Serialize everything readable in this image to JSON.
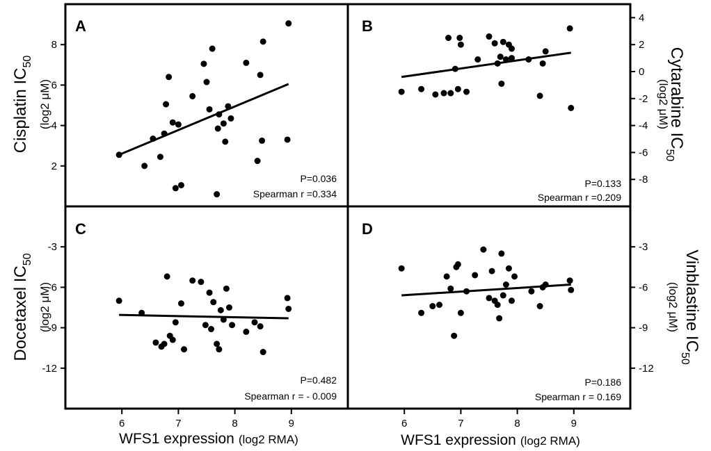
{
  "figure": {
    "x_axis_title": "WFS1 expression",
    "x_axis_unit": "(log2 RMA)",
    "x_ticks": [
      "6",
      "7",
      "8",
      "9"
    ]
  },
  "chart_data": [
    {
      "type": "scatter",
      "letter": "A",
      "title_main": "Cisplatin IC",
      "title_sub": "50",
      "unit": "(log2 μM)",
      "p_text": "P=0.036",
      "r_text": "Spearman r =0.334",
      "xlim": [
        5.0,
        10.0
      ],
      "ylim": [
        0,
        10
      ],
      "y_ticks": [
        "2",
        "4",
        "6",
        "8"
      ],
      "y_axis_side": "left",
      "trend": [
        [
          5.95,
          2.55
        ],
        [
          8.95,
          6.05
        ]
      ],
      "x": [
        5.95,
        6.4,
        6.55,
        6.68,
        6.75,
        6.78,
        6.83,
        6.9,
        6.95,
        7.0,
        7.05,
        7.25,
        7.45,
        7.5,
        7.55,
        7.6,
        7.7,
        7.72,
        7.8,
        7.83,
        7.88,
        7.93,
        8.2,
        8.4,
        8.45,
        8.48,
        8.5,
        8.93,
        8.95,
        7.68
      ],
      "y": [
        2.55,
        2.0,
        3.35,
        2.45,
        3.6,
        5.05,
        6.4,
        4.15,
        0.9,
        4.05,
        1.05,
        5.45,
        7.05,
        6.15,
        4.8,
        7.8,
        3.85,
        4.55,
        4.1,
        3.2,
        4.95,
        4.35,
        7.1,
        2.25,
        6.5,
        3.25,
        8.15,
        3.3,
        9.05,
        0.6
      ]
    },
    {
      "type": "scatter",
      "letter": "B",
      "title_main": "Cytarabine IC",
      "title_sub": "50",
      "unit": "(log2 μM)",
      "p_text": "P=0.133",
      "r_text": "Spearman r =0.209",
      "xlim": [
        5.0,
        10.0
      ],
      "ylim": [
        -10,
        5
      ],
      "y_ticks": [
        "-8",
        "-6",
        "-4",
        "-2",
        "0",
        "2",
        "4"
      ],
      "y_axis_side": "right",
      "trend": [
        [
          5.95,
          -0.4
        ],
        [
          8.95,
          1.4
        ]
      ],
      "x": [
        5.95,
        6.3,
        6.55,
        6.7,
        6.78,
        6.82,
        6.9,
        6.95,
        6.98,
        7.0,
        7.1,
        7.3,
        7.5,
        7.6,
        7.65,
        7.7,
        7.72,
        7.75,
        7.8,
        7.85,
        7.9,
        7.9,
        8.2,
        8.4,
        8.45,
        8.5,
        8.93,
        8.95
      ],
      "y": [
        -1.5,
        -1.3,
        -1.7,
        -1.6,
        2.5,
        -1.6,
        0.2,
        -1.3,
        2.5,
        2.0,
        -1.5,
        0.9,
        2.6,
        2.1,
        0.6,
        1.1,
        -0.9,
        2.2,
        0.9,
        2.0,
        1.0,
        1.7,
        0.9,
        -1.8,
        0.6,
        1.5,
        3.2,
        -2.7
      ]
    },
    {
      "type": "scatter",
      "letter": "C",
      "title_main": "Docetaxel IC",
      "title_sub": "50",
      "unit": "(log2 μM)",
      "p_text": "P=0.482",
      "r_text": "Spearman r = - 0.009",
      "xlim": [
        5.0,
        10.0
      ],
      "ylim": [
        -15,
        0
      ],
      "y_ticks": [
        "-12",
        "-9",
        "-6",
        "-3"
      ],
      "y_axis_side": "left",
      "trend": [
        [
          5.95,
          -8.05
        ],
        [
          8.95,
          -8.3
        ]
      ],
      "x": [
        5.95,
        6.35,
        6.6,
        6.7,
        6.75,
        6.8,
        6.85,
        6.9,
        6.95,
        7.05,
        7.1,
        7.25,
        7.4,
        7.48,
        7.55,
        7.58,
        7.62,
        7.68,
        7.72,
        7.75,
        7.8,
        7.85,
        7.9,
        7.95,
        8.2,
        8.35,
        8.45,
        8.5,
        8.93,
        8.95
      ],
      "y": [
        -7.0,
        -7.9,
        -10.1,
        -10.4,
        -10.2,
        -5.2,
        -9.6,
        -9.9,
        -8.6,
        -7.2,
        -10.6,
        -5.5,
        -5.6,
        -8.8,
        -6.4,
        -9.1,
        -7.1,
        -10.2,
        -10.6,
        -7.7,
        -8.4,
        -6.1,
        -7.5,
        -8.8,
        -9.3,
        -8.6,
        -8.9,
        -10.8,
        -6.8,
        -7.6
      ]
    },
    {
      "type": "scatter",
      "letter": "D",
      "title_main": "Vinblastine IC",
      "title_sub": "50",
      "unit": "(log2 μM)",
      "p_text": "P=0.186",
      "r_text": "Spearman r = 0.169",
      "xlim": [
        5.0,
        10.0
      ],
      "ylim": [
        -15,
        0
      ],
      "y_ticks": [
        "-12",
        "-9",
        "-6",
        "-3"
      ],
      "y_axis_side": "right",
      "trend": [
        [
          5.95,
          -6.6
        ],
        [
          8.95,
          -5.8
        ]
      ],
      "x": [
        5.95,
        6.3,
        6.5,
        6.62,
        6.75,
        6.82,
        6.88,
        6.92,
        6.95,
        7.0,
        7.1,
        7.25,
        7.4,
        7.5,
        7.55,
        7.6,
        7.65,
        7.68,
        7.72,
        7.75,
        7.8,
        7.85,
        7.9,
        7.95,
        8.25,
        8.4,
        8.45,
        8.5,
        8.93,
        8.95
      ],
      "y": [
        -4.6,
        -7.9,
        -7.4,
        -7.3,
        -5.2,
        -6.1,
        -9.6,
        -4.5,
        -4.3,
        -7.9,
        -6.3,
        -5.1,
        -3.2,
        -6.8,
        -4.8,
        -7.0,
        -7.3,
        -8.3,
        -3.5,
        -6.6,
        -5.8,
        -4.6,
        -7.0,
        -5.2,
        -6.3,
        -7.4,
        -6.0,
        -5.8,
        -5.5,
        -6.2
      ]
    }
  ]
}
